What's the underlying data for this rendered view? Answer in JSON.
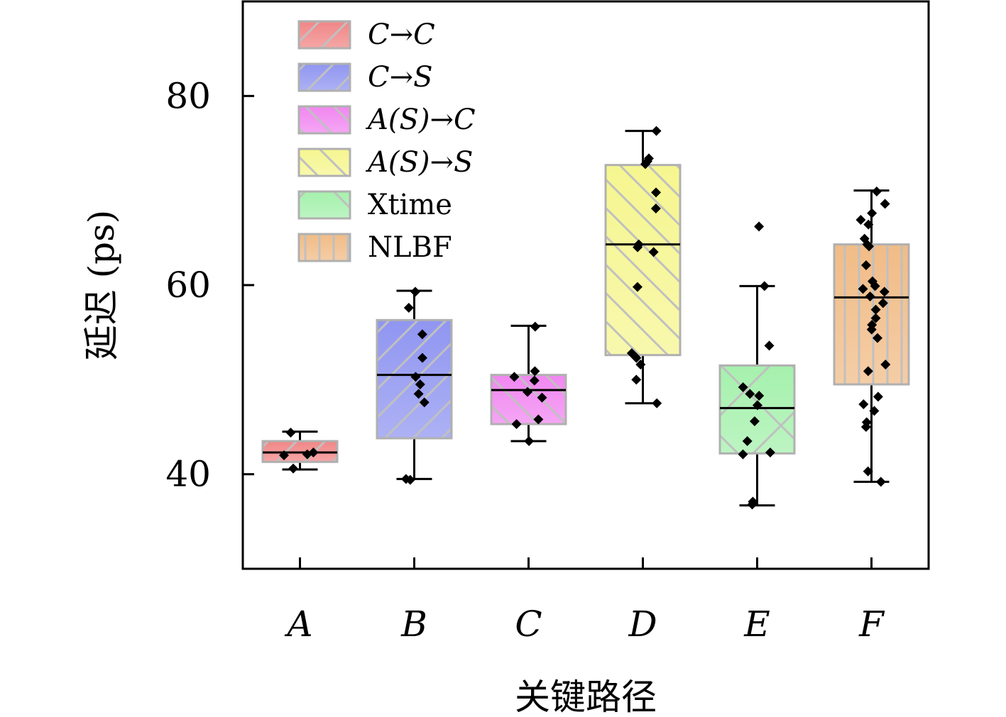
{
  "chart_data": {
    "type": "box",
    "xlabel": "关键路径",
    "ylabel": "延迟 (ps)",
    "ylim": [
      30,
      90
    ],
    "yticks": [
      40,
      60,
      80
    ],
    "categories": [
      "A",
      "B",
      "C",
      "D",
      "E",
      "F"
    ],
    "legend_position": "top-left",
    "grid": false,
    "series": [
      {
        "name": "C→C",
        "category": "A",
        "color": "#f08080",
        "hatch": "forward-diagonal",
        "whisker_low": 40.5,
        "q1": 41.3,
        "median": 42.3,
        "q3": 43.5,
        "whisker_high": 44.5,
        "points": [
          42.0,
          42.3,
          40.6,
          44.4,
          42.1
        ]
      },
      {
        "name": "C→S",
        "category": "B",
        "color": "#8a90f0",
        "hatch": "forward-diagonal",
        "whisker_low": 39.5,
        "q1": 43.8,
        "median": 50.5,
        "q3": 56.3,
        "whisker_high": 59.4,
        "points": [
          59.3,
          57.6,
          54.8,
          52.3,
          50.3,
          49.5,
          48.5,
          47.6,
          39.5,
          39.4
        ]
      },
      {
        "name": "A(S)→C",
        "category": "C",
        "color": "#f080f0",
        "hatch": "back-diagonal",
        "whisker_low": 43.5,
        "q1": 45.3,
        "median": 48.9,
        "q3": 50.5,
        "whisker_high": 55.7,
        "points": [
          55.6,
          50.9,
          50.3,
          49.9,
          48.7,
          48.1,
          45.8,
          45.3,
          43.5
        ]
      },
      {
        "name": "A(S)→S",
        "category": "D",
        "color": "#f5f58a",
        "hatch": "back-diagonal",
        "whisker_low": 47.5,
        "q1": 52.6,
        "median": 64.3,
        "q3": 72.7,
        "whisker_high": 76.3,
        "points": [
          76.3,
          73.4,
          73.1,
          72.8,
          69.8,
          68.1,
          64.3,
          64.0,
          63.5,
          59.8,
          52.8,
          52.3,
          51.6,
          50.0,
          47.5
        ]
      },
      {
        "name": "Xtime",
        "category": "E",
        "color": "#a0f0a8",
        "hatch": "x-cross",
        "whisker_low": 36.7,
        "q1": 42.2,
        "median": 47.0,
        "q3": 51.5,
        "whisker_high": 59.9,
        "points": [
          66.2,
          59.9,
          53.6,
          49.2,
          48.5,
          48.3,
          47.3,
          45.6,
          43.5,
          42.3,
          42.1,
          37.1,
          36.8
        ]
      },
      {
        "name": "NLBF",
        "category": "F",
        "color": "#f0b880",
        "hatch": "vertical",
        "whisker_low": 39.2,
        "q1": 49.5,
        "median": 58.7,
        "q3": 64.3,
        "whisker_high": 70.0,
        "points": [
          69.9,
          68.6,
          67.6,
          66.9,
          66.4,
          64.9,
          64.3,
          64.1,
          62.1,
          60.4,
          59.9,
          59.6,
          59.3,
          58.8,
          58.1,
          57.4,
          56.5,
          55.8,
          55.3,
          54.4,
          51.6,
          50.9,
          48.2,
          47.4,
          46.7,
          45.5,
          45.0,
          40.3,
          39.2
        ]
      }
    ]
  }
}
